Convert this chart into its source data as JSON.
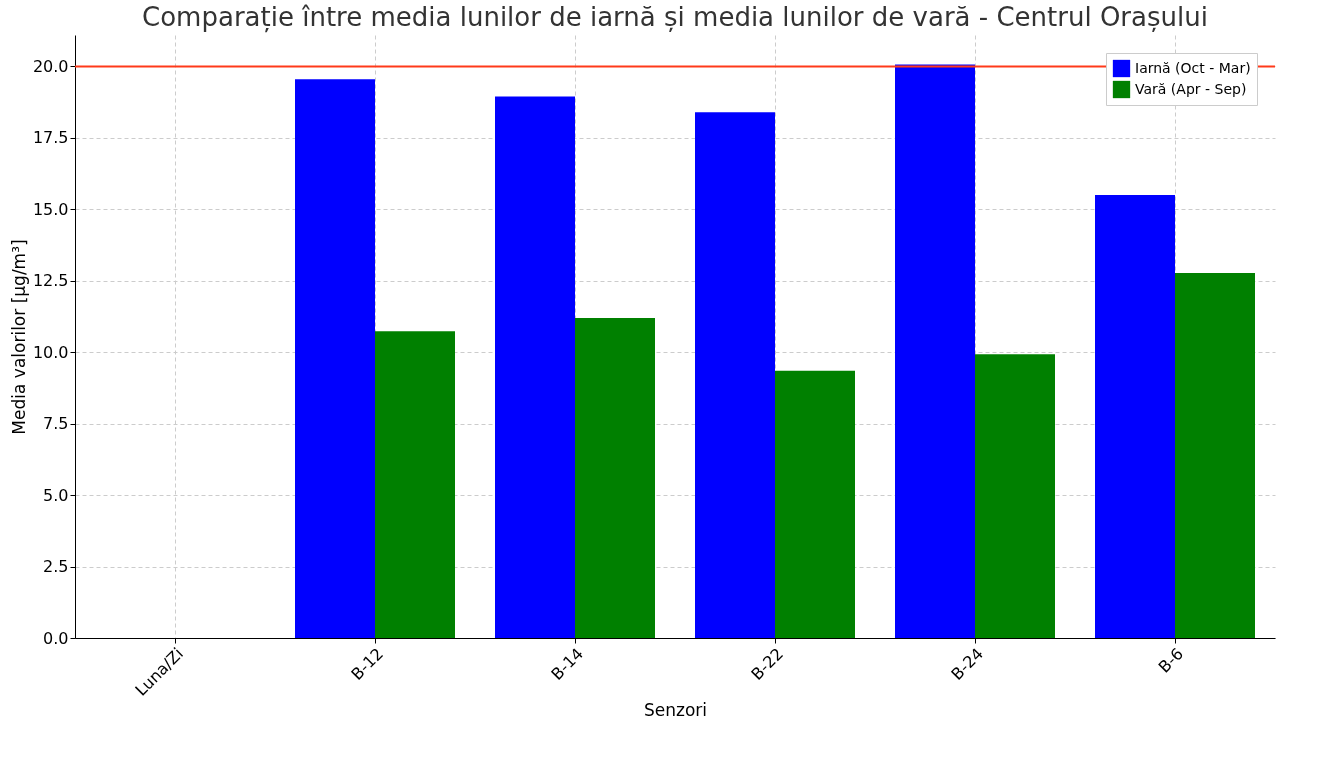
{
  "chart_data": {
    "type": "bar",
    "title": "Comparație între media lunilor de iarnă și media lunilor de vară - Centrul Orașului",
    "xlabel": "Senzori",
    "ylabel": "Media valorilor [µg/m³]",
    "categories": [
      "Luna/Zi",
      "B-12",
      "B-14",
      "B-22",
      "B-24",
      "B-6"
    ],
    "series": [
      {
        "name": "Iarnă (Oct - Mar)",
        "color": "#0000ff",
        "values": [
          null,
          19.55,
          18.95,
          18.4,
          20.07,
          15.5
        ]
      },
      {
        "name": "Vară (Apr - Sep)",
        "color": "#008000",
        "values": [
          null,
          10.73,
          11.2,
          9.35,
          9.93,
          12.77
        ]
      }
    ],
    "ylim": [
      0,
      21.1
    ],
    "yticks": [
      {
        "value": 0,
        "label": "0.0"
      },
      2.5,
      {
        "value": 5,
        "label": "5.0"
      },
      7.5,
      {
        "value": 10,
        "label": "10.0"
      },
      12.5,
      {
        "value": 15,
        "label": "15.0"
      },
      17.5,
      {
        "value": 20,
        "label": "20.0"
      }
    ],
    "ref_lines": [
      {
        "axis": "y",
        "value": 20,
        "color": "#ff3a1a"
      }
    ],
    "grid": true,
    "legend": "top right"
  }
}
